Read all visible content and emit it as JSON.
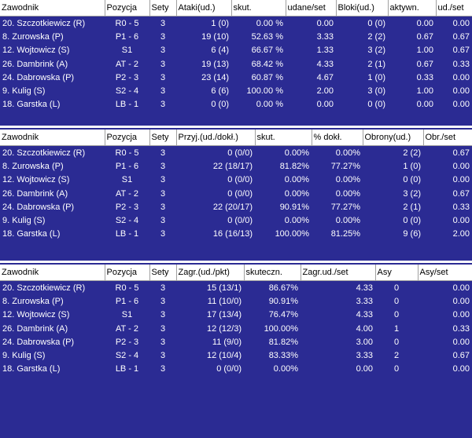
{
  "tables": [
    {
      "id": "attack",
      "headers": [
        "Zawodnik",
        "Pozycja",
        "Sety",
        "Ataki(ud.)",
        "skut.",
        "udane/set",
        "Bloki(ud.)",
        "aktywn.",
        "ud./set"
      ],
      "rows": [
        [
          "20. Szczotkiewicz (R)",
          "R0 - 5",
          "3",
          "1 (0)",
          "0.00 %",
          "0.00",
          "0 (0)",
          "0.00",
          "0.00"
        ],
        [
          " 8. Zurowska (P)",
          "P1 - 6",
          "3",
          "19 (10)",
          "52.63 %",
          "3.33",
          "2 (2)",
          "0.67",
          "0.67"
        ],
        [
          "12. Wojtowicz (S)",
          "S1",
          "3",
          "6 (4)",
          "66.67 %",
          "1.33",
          "3 (2)",
          "1.00",
          "0.67"
        ],
        [
          "26. Dambrink (A)",
          "AT - 2",
          "3",
          "19 (13)",
          "68.42 %",
          "4.33",
          "2 (1)",
          "0.67",
          "0.33"
        ],
        [
          "24. Dabrowska (P)",
          "P2 - 3",
          "3",
          "23 (14)",
          "60.87 %",
          "4.67",
          "1 (0)",
          "0.33",
          "0.00"
        ],
        [
          " 9. Kulig (S)",
          "S2 - 4",
          "3",
          "6 (6)",
          "100.00 %",
          "2.00",
          "3 (0)",
          "1.00",
          "0.00"
        ],
        [
          "18. Garstka (L)",
          "LB - 1",
          "3",
          "0 (0)",
          "0.00 %",
          "0.00",
          "0 (0)",
          "0.00",
          "0.00"
        ]
      ]
    },
    {
      "id": "reception",
      "headers": [
        "Zawodnik",
        "Pozycja",
        "Sety",
        "Przyj.(ud./dokł.)",
        "skut.",
        "% dokł.",
        "Obrony(ud.)",
        "Obr./set"
      ],
      "rows": [
        [
          "20. Szczotkiewicz (R)",
          "R0 - 5",
          "3",
          "0 (0/0)",
          "0.00%",
          "0.00%",
          "2 (2)",
          "0.67"
        ],
        [
          " 8. Zurowska (P)",
          "P1 - 6",
          "3",
          "22 (18/17)",
          "81.82%",
          "77.27%",
          "1 (0)",
          "0.00"
        ],
        [
          "12. Wojtowicz (S)",
          "S1",
          "3",
          "0 (0/0)",
          "0.00%",
          "0.00%",
          "0 (0)",
          "0.00"
        ],
        [
          "26. Dambrink (A)",
          "AT - 2",
          "3",
          "0 (0/0)",
          "0.00%",
          "0.00%",
          "3 (2)",
          "0.67"
        ],
        [
          "24. Dabrowska (P)",
          "P2 - 3",
          "3",
          "22 (20/17)",
          "90.91%",
          "77.27%",
          "2 (1)",
          "0.33"
        ],
        [
          " 9. Kulig (S)",
          "S2 - 4",
          "3",
          "0 (0/0)",
          "0.00%",
          "0.00%",
          "0 (0)",
          "0.00"
        ],
        [
          "18. Garstka (L)",
          "LB - 1",
          "3",
          "16 (16/13)",
          "100.00%",
          "81.25%",
          "9 (6)",
          "2.00"
        ]
      ]
    },
    {
      "id": "serve",
      "headers": [
        "Zawodnik",
        "Pozycja",
        "Sety",
        "Zagr.(ud./pkt)",
        "skuteczn.",
        "Zagr.ud./set",
        "Asy",
        "Asy/set"
      ],
      "rows": [
        [
          "20. Szczotkiewicz (R)",
          "R0 - 5",
          "3",
          "15 (13/1)",
          "86.67%",
          "4.33",
          "0",
          "0.00"
        ],
        [
          " 8. Zurowska (P)",
          "P1 - 6",
          "3",
          "11 (10/0)",
          "90.91%",
          "3.33",
          "0",
          "0.00"
        ],
        [
          "12. Wojtowicz (S)",
          "S1",
          "3",
          "17 (13/4)",
          "76.47%",
          "4.33",
          "0",
          "0.00"
        ],
        [
          "26. Dambrink (A)",
          "AT - 2",
          "3",
          "12 (12/3)",
          "100.00%",
          "4.00",
          "1",
          "0.33"
        ],
        [
          "24. Dabrowska (P)",
          "P2 - 3",
          "3",
          "11 (9/0)",
          "81.82%",
          "3.00",
          "0",
          "0.00"
        ],
        [
          " 9. Kulig (S)",
          "S2 - 4",
          "3",
          "12 (10/4)",
          "83.33%",
          "3.33",
          "2",
          "0.67"
        ],
        [
          "18. Garstka (L)",
          "LB - 1",
          "3",
          "0 (0/0)",
          "0.00%",
          "0.00",
          "0",
          "0.00"
        ]
      ]
    }
  ]
}
